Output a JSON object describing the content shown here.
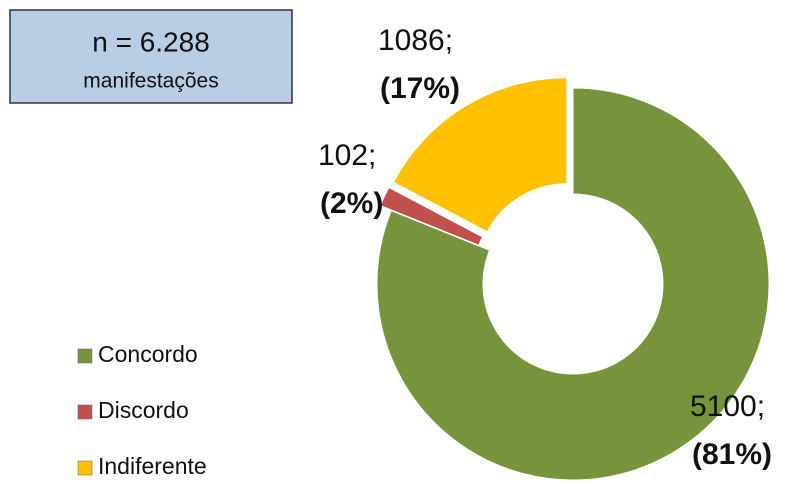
{
  "chart_data": {
    "type": "donut",
    "annotation": [
      "n = 6.288",
      "manifestações"
    ],
    "categories": [
      "Concordo",
      "Discordo",
      "Indiferente"
    ],
    "values": [
      5100,
      102,
      1086
    ],
    "value_labels": [
      "5100;",
      "102;",
      "1086;"
    ],
    "percent_labels": [
      "(81%)",
      "(2%)",
      "(17%)"
    ],
    "colors": [
      "#77933c",
      "#c0504d",
      "#ffc000"
    ],
    "legend": "left"
  }
}
